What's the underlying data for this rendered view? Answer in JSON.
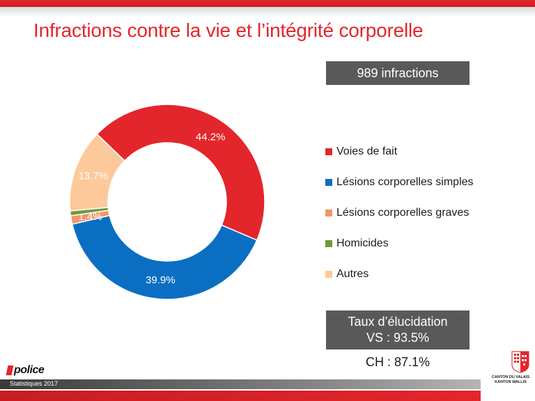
{
  "header": {
    "title": "Infractions contre la vie et l’intégrité corporelle"
  },
  "summary": {
    "count_label": "989 infractions",
    "clearance_label": "Taux d’élucidation",
    "clearance_vs": "VS : 93.5%",
    "clearance_ch": "CH : 87.1%"
  },
  "chart_data": {
    "type": "pie",
    "donut": true,
    "title": "",
    "categories": [
      "Voies de fait",
      "Lésions corporelles simples",
      "Lésions corporelles graves",
      "Homicides",
      "Autres"
    ],
    "values": [
      44.2,
      39.9,
      1.4,
      0.8,
      13.7
    ],
    "labels": [
      "44.2%",
      "39.9%",
      "1.4%",
      "0.8%",
      "13.7%"
    ],
    "colors": [
      "#e3262b",
      "#0a6fc2",
      "#f4956a",
      "#6e9a3c",
      "#fcc99b"
    ],
    "label_colors": [
      "#ffffff",
      "#ffffff",
      "#ffffff",
      "#ffffff",
      "#ffffff"
    ],
    "legend_position": "right"
  },
  "footer": {
    "logo_text": "police",
    "caption": "Statistiques 2017",
    "canton_line1": "CANTON DU VALAIS",
    "canton_line2": "KANTON WALLIS"
  }
}
